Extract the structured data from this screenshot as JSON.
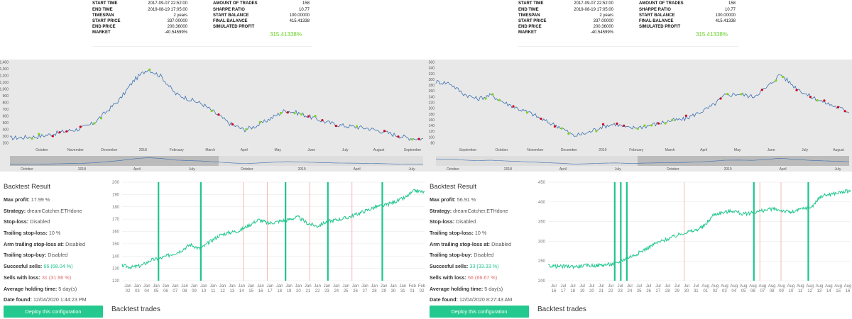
{
  "left": {
    "stats": {
      "start_time_label": "START TIME",
      "start_time": "2017-09-07 22:52:00",
      "end_time_label": "END TIME",
      "end_time": "2019-08-19 17:05:00",
      "timespan_label": "TIMESPAN",
      "timespan": "2 years",
      "start_price_label": "START PRICE",
      "start_price": "337.00000",
      "end_price_label": "END PRICE",
      "end_price": "200.36000",
      "market_label": "MARKET",
      "market": "-40.54599%",
      "trades_label": "AMOUNT OF TRADES",
      "trades": "158",
      "sharpe_label": "SHARPE RATIO",
      "sharpe": "10.77",
      "start_balance_label": "START BALANCE",
      "start_balance": "100.00000",
      "final_balance_label": "FINAL BALANCE",
      "final_balance": "415.41338",
      "sim_profit_label": "SIMULATED PROFIT",
      "sim_profit": "315.41338%"
    },
    "price_chart": {
      "y_ticks": [
        "1,400",
        "1,300",
        "1,200",
        "1,100",
        "1,000",
        "900",
        "800",
        "700",
        "600",
        "500",
        "400",
        "300",
        "200"
      ],
      "x_ticks": [
        "October",
        "November",
        "December",
        "2018",
        "February",
        "March",
        "April",
        "May",
        "June",
        "July",
        "August",
        "September"
      ],
      "nav_ticks": [
        "October",
        "2018",
        "April",
        "July",
        "October",
        "2019",
        "April",
        "July"
      ]
    },
    "result": {
      "title": "Backtest Result",
      "max_profit_label": "Max profit:",
      "max_profit": "17.99 %",
      "strategy_label": "Strategy:",
      "strategy": "dreamCatcher.ETHdone",
      "stop_loss_label": "Stop-loss:",
      "stop_loss": "Disabled",
      "trailing_label": "Trailing stop-loss:",
      "trailing": "10 %",
      "arm_label": "Arm trailing stop-loss at:",
      "arm": "Disabled",
      "tsb_label": "Trailing stop-buy:",
      "tsb": "Disabled",
      "succ_label": "Succesful sells:",
      "succ": "66 (68.04 %)",
      "loss_label": "Sells with loss:",
      "loss": "31 (31.96 %)",
      "hold_label": "Average holding time:",
      "hold": "5 day(s)",
      "date_label": "Date found:",
      "date": "12/04/2020 1:44:23 PM",
      "deploy": "Deploy this configuration",
      "trades": "Backtest trades"
    },
    "equity_chart": {
      "y_ticks": [
        "200",
        "190",
        "180",
        "170",
        "160",
        "150",
        "140",
        "130",
        "120"
      ],
      "x_top": [
        "Jan",
        "Jan",
        "Jan",
        "Jan",
        "Jan",
        "Jan",
        "Jan",
        "Jan",
        "Jan",
        "Jan",
        "Jan",
        "Jan",
        "Jan",
        "Jan",
        "Jan",
        "Jan",
        "Jan",
        "Jan",
        "Jan",
        "Jan",
        "Jan",
        "Jan",
        "Jan",
        "Jan",
        "Jan",
        "Jan",
        "Jan",
        "Jan",
        "Jan",
        "Jan",
        "Feb",
        "Feb"
      ],
      "x_bot": [
        "02",
        "03",
        "04",
        "05",
        "06",
        "07",
        "08",
        "09",
        "10",
        "11",
        "12",
        "13",
        "14",
        "15",
        "16",
        "17",
        "18",
        "19",
        "20",
        "21",
        "22",
        "23",
        "24",
        "25",
        "26",
        "27",
        "28",
        "29",
        "30",
        "31",
        "01",
        "02"
      ]
    }
  },
  "right": {
    "stats": {
      "start_time_label": "START TIME",
      "start_time": "2017-09-07 22:52:00",
      "end_time_label": "END TIME",
      "end_time": "2019-08-19 17:05:00",
      "timespan_label": "TIMESPAN",
      "timespan": "2 years",
      "start_price_label": "START PRICE",
      "start_price": "337.00000",
      "end_price_label": "END PRICE",
      "end_price": "200.36000",
      "market_label": "MARKET",
      "market": "-40.54599%",
      "trades_label": "AMOUNT OF TRADES",
      "trades": "158",
      "sharpe_label": "SHARPE RATIO",
      "sharpe": "10.77",
      "start_balance_label": "START BALANCE",
      "start_balance": "100.00000",
      "final_balance_label": "FINAL BALANCE",
      "final_balance": "415.41338",
      "sim_profit_label": "SIMULATED PROFIT",
      "sim_profit": "315.41338%"
    },
    "price_chart": {
      "y_ticks": [
        "360",
        "340",
        "320",
        "300",
        "280",
        "260",
        "240",
        "220",
        "200",
        "180",
        "160",
        "140",
        "120",
        "100",
        "80"
      ],
      "x_ticks": [
        "September",
        "October",
        "November",
        "December",
        "2019",
        "February",
        "March",
        "April",
        "May",
        "June",
        "July",
        "August"
      ],
      "nav_ticks": [
        "October",
        "2018",
        "April",
        "July",
        "October",
        "2019",
        "April",
        "July"
      ]
    },
    "result": {
      "title": "Backtest Result",
      "max_profit_label": "Max profit:",
      "max_profit": "56.91 %",
      "strategy_label": "Strategy:",
      "strategy": "dreamCatcher.ETHdone",
      "stop_loss_label": "Stop-loss:",
      "stop_loss": "Disabled",
      "trailing_label": "Trailing stop-loss:",
      "trailing": "10 %",
      "arm_label": "Arm trailing stop-loss at:",
      "arm": "Disabled",
      "tsb_label": "Trailing stop-buy:",
      "tsb": "Disabled",
      "succ_label": "Succesful sells:",
      "succ": "33 (33.33 %)",
      "loss_label": "Sells with loss:",
      "loss": "66 (66.67 %)",
      "hold_label": "Average holding time:",
      "hold": "5 day(s)",
      "date_label": "Date found:",
      "date": "12/04/2020 8:27:43 AM",
      "deploy": "Deploy this configuration",
      "trades": "Backtest trades"
    },
    "equity_chart": {
      "y_ticks": [
        "450",
        "400",
        "350",
        "300",
        "250",
        "200"
      ],
      "x_top": [
        "Jul",
        "Jul",
        "Jul",
        "Jul",
        "Jul",
        "Jul",
        "Jul",
        "Jul",
        "Jul",
        "Jul",
        "Jul",
        "Jul",
        "Jul",
        "Jul",
        "Jul",
        "Jul",
        "Aug",
        "Aug",
        "Aug",
        "Aug",
        "Aug",
        "Aug",
        "Aug",
        "Aug",
        "Aug",
        "Aug",
        "Aug",
        "Aug",
        "Aug",
        "Aug",
        "Aug",
        "Aug"
      ],
      "x_bot": [
        "16",
        "17",
        "18",
        "19",
        "20",
        "21",
        "22",
        "23",
        "24",
        "25",
        "26",
        "27",
        "28",
        "29",
        "30",
        "31",
        "01",
        "02",
        "03",
        "04",
        "05",
        "06",
        "07",
        "08",
        "09",
        "10",
        "11",
        "12",
        "13",
        "14",
        "15",
        "16"
      ]
    }
  }
}
